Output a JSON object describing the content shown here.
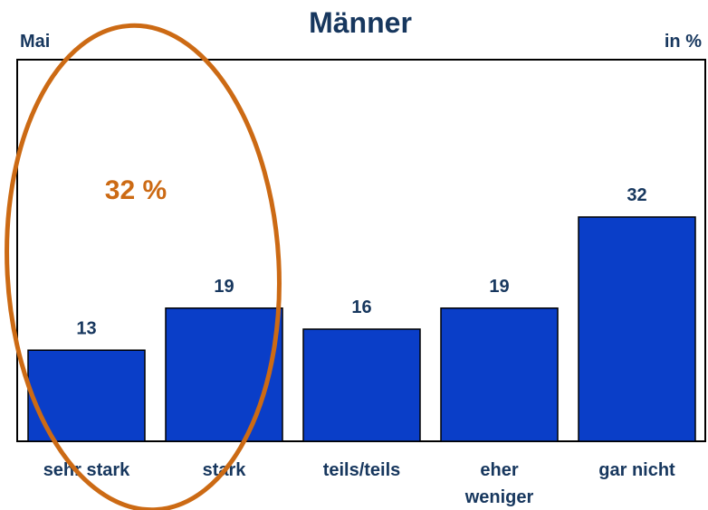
{
  "chart_data": {
    "type": "bar",
    "title": "Männer",
    "subtitle": "Mai",
    "unit_label": "in %",
    "categories": [
      "sehr stark",
      "stark",
      "teils/teils",
      "eher weniger",
      "gar nicht"
    ],
    "values": [
      13,
      19,
      16,
      19,
      32
    ],
    "color": "#0a3ec8",
    "annotation": "32 %",
    "annotation_color": "#cc6a14"
  }
}
